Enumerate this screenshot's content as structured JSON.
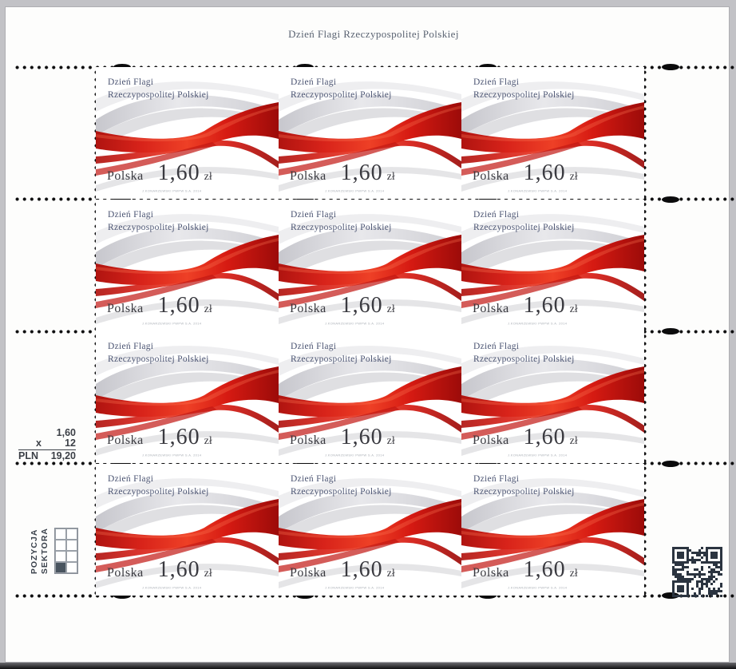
{
  "sheet": {
    "header": "Dzień Flagi Rzeczypospolitej Polskiej",
    "grid": {
      "rows": 4,
      "cols": 3,
      "stamp_count": 12
    },
    "stamp": {
      "title_line1": "Dzień Flagi",
      "title_line2": "Rzeczypospolitej Polskiej",
      "country": "Polska",
      "value": "1,60",
      "currency": "zł",
      "imprint": "J.KONARZEWSKI   PWPW S.A. 2014"
    },
    "margin": {
      "price_unit": "1,60",
      "price_x": "x",
      "price_qty": "12",
      "price_currency": "PLN",
      "price_total": "19,20",
      "sector_line1": "POZYCJA",
      "sector_line2": "SEKTORA",
      "sector_grid": {
        "cols": 2,
        "rows": 4,
        "filled_cell": "bottom-left"
      }
    },
    "colors": {
      "flag_red": "#d8231a",
      "flag_dark_red": "#9c0b09",
      "flag_silver": "#c9c9cf",
      "title_text": "#4b5472",
      "value_text": "#3a3a40",
      "perforation_dot": "#0e0e0f",
      "sector_fill": "#49545f"
    }
  }
}
